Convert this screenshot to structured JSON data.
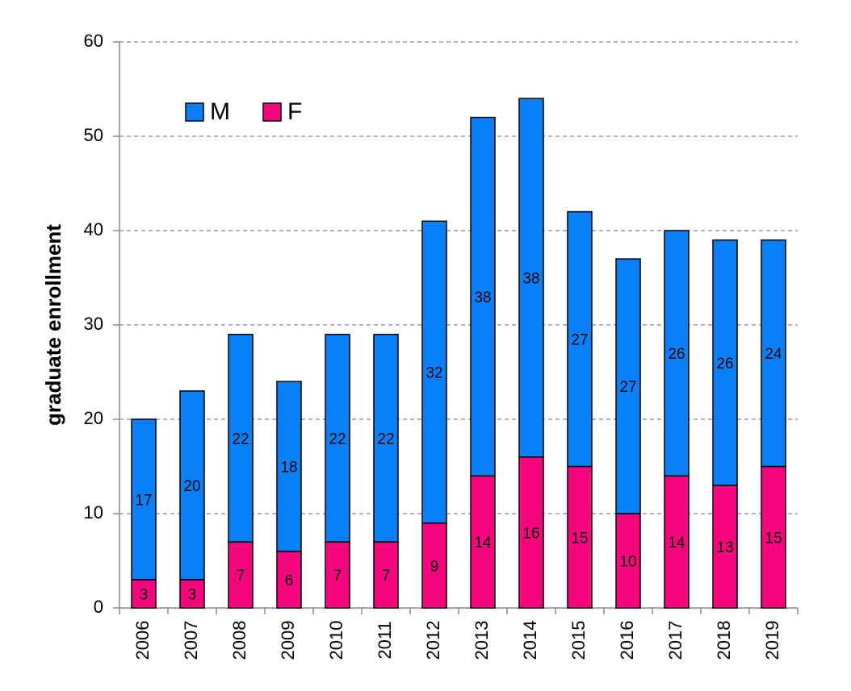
{
  "chart_data": {
    "type": "bar",
    "stacked": true,
    "y_label": "graduate enrollment",
    "categories": [
      "2006",
      "2007",
      "2008",
      "2009",
      "2010",
      "2011",
      "2012",
      "2013",
      "2014",
      "2015",
      "2016",
      "2017",
      "2018",
      "2019"
    ],
    "series": [
      {
        "name": "F",
        "color": "#f7047f",
        "values": [
          3,
          3,
          7,
          6,
          7,
          7,
          9,
          14,
          16,
          15,
          10,
          14,
          13,
          15
        ]
      },
      {
        "name": "M",
        "color": "#0a80f8",
        "values": [
          17,
          20,
          22,
          18,
          22,
          22,
          32,
          38,
          38,
          27,
          27,
          26,
          26,
          24
        ]
      }
    ],
    "legend_order": [
      "M",
      "F"
    ],
    "ylim": [
      0,
      60
    ],
    "yticks": [
      0,
      10,
      20,
      30,
      40,
      50,
      60
    ],
    "grid": true,
    "legend": "upper left"
  }
}
